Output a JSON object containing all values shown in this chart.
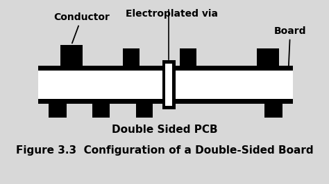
{
  "bg_color": "#d8d8d8",
  "black": "#000000",
  "white": "#ffffff",
  "title": "Figure 3.3  Configuration of a Double-Sided Board",
  "subtitle": "Double Sided PCB",
  "label_conductor": "Conductor",
  "label_via": "Electroplated via",
  "label_board": "Board",
  "title_fontsize": 11,
  "subtitle_fontsize": 11,
  "label_fontsize": 10
}
